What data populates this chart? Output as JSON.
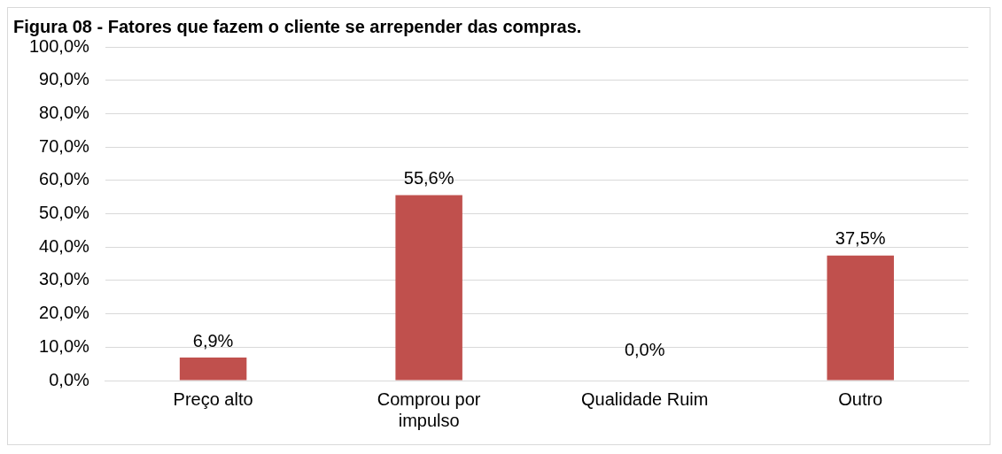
{
  "chart_data": {
    "type": "bar",
    "title": "Figura 08 - Fatores que fazem o cliente se arrepender das compras.",
    "categories": [
      "Preço alto",
      "Comprou por impulso",
      "Qualidade Ruim",
      "Outro"
    ],
    "values": [
      6.9,
      55.6,
      0,
      37.5
    ],
    "color": "#c0504d",
    "value_labels": [
      "6,9%",
      "55,6%",
      "0,0%",
      "37,5%"
    ],
    "ylim": [
      0,
      100
    ],
    "yticks": [
      {
        "value": 0,
        "label": "0,0%"
      },
      {
        "value": 10,
        "label": "10,0%"
      },
      {
        "value": 20,
        "label": "20,0%"
      },
      {
        "value": 30,
        "label": "30,0%"
      },
      {
        "value": 40,
        "label": "40,0%"
      },
      {
        "value": 50,
        "label": "50,0%"
      },
      {
        "value": 60,
        "label": "60,0%"
      },
      {
        "value": 70,
        "label": "70,0%"
      },
      {
        "value": 80,
        "label": "80,0%"
      },
      {
        "value": 90,
        "label": "90,0%"
      },
      {
        "value": 100,
        "label": "100,0%"
      }
    ],
    "grid": "y"
  }
}
